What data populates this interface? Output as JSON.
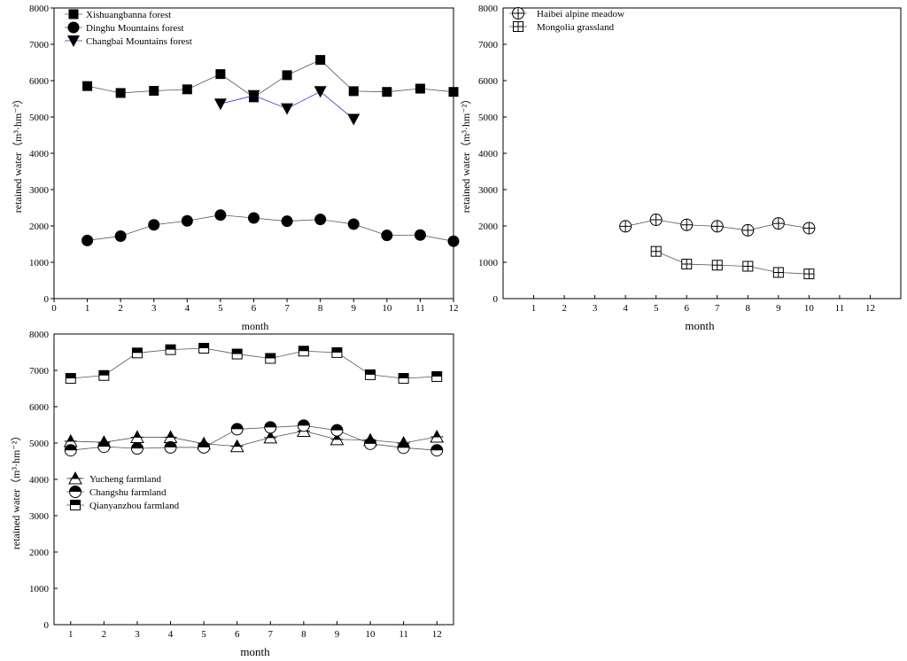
{
  "chart_data": [
    {
      "id": "forests",
      "type": "line",
      "xlabel": "month",
      "ylabel": "retained water（m³·hm⁻²）",
      "xlim": [
        0,
        12
      ],
      "ylim": [
        0,
        8000
      ],
      "xticks": [
        0,
        1,
        2,
        3,
        4,
        5,
        6,
        7,
        8,
        9,
        10,
        11,
        12
      ],
      "yticks": [
        0,
        1000,
        2000,
        3000,
        4000,
        5000,
        6000,
        7000,
        8000
      ],
      "legend_position": "top-left",
      "series": [
        {
          "name": "Xishuangbanna forest",
          "marker": "square-filled",
          "line_color": "#555555",
          "x": [
            1,
            2,
            3,
            4,
            5,
            6,
            7,
            8,
            9,
            10,
            11,
            12
          ],
          "values": [
            5850,
            5660,
            5720,
            5760,
            6180,
            5540,
            6150,
            6570,
            5710,
            5690,
            5780,
            5690
          ]
        },
        {
          "name": "Dinghu Mountains forest",
          "marker": "circle-filled",
          "line_color": "#555555",
          "x": [
            1,
            2,
            3,
            4,
            5,
            6,
            7,
            8,
            9,
            10,
            11,
            12
          ],
          "values": [
            1600,
            1720,
            2030,
            2140,
            2300,
            2220,
            2130,
            2180,
            2050,
            1740,
            1750,
            1580
          ]
        },
        {
          "name": "Changbai Mountains forest",
          "marker": "triangle-down-filled",
          "line_color": "#3333cc",
          "x": [
            5,
            6,
            7,
            8,
            9
          ],
          "values": [
            5360,
            5590,
            5230,
            5700,
            4940
          ]
        }
      ]
    },
    {
      "id": "grasslands",
      "type": "line",
      "xlabel": "month",
      "ylabel": "retained water（m³·hm⁻²）",
      "xlim": [
        0,
        13
      ],
      "ylim": [
        0,
        8000
      ],
      "xticks": [
        1,
        2,
        3,
        4,
        5,
        6,
        7,
        8,
        9,
        10,
        11,
        12
      ],
      "yticks": [
        0,
        1000,
        2000,
        3000,
        4000,
        5000,
        6000,
        7000,
        8000
      ],
      "legend_position": "top-left",
      "series": [
        {
          "name": "Haibei alpine meadow",
          "marker": "circle-plus",
          "line_color": "#555555",
          "x": [
            4,
            5,
            6,
            7,
            8,
            9,
            10
          ],
          "values": [
            1990,
            2170,
            2030,
            1990,
            1880,
            2070,
            1940
          ]
        },
        {
          "name": "Mongolia grassland",
          "marker": "square-plus",
          "line_color": "#555555",
          "x": [
            5,
            6,
            7,
            8,
            9,
            10
          ],
          "values": [
            1300,
            950,
            920,
            890,
            720,
            680
          ]
        }
      ]
    },
    {
      "id": "farmlands",
      "type": "line",
      "xlabel": "month",
      "ylabel": "retained water（m³·hm⁻²）",
      "xlim": [
        0.5,
        12.5
      ],
      "ylim": [
        0,
        8000
      ],
      "xticks": [
        1,
        2,
        3,
        4,
        5,
        6,
        7,
        8,
        9,
        10,
        11,
        12
      ],
      "yticks": [
        0,
        1000,
        2000,
        3000,
        4000,
        5000,
        6000,
        7000,
        8000
      ],
      "legend_position": "middle-left",
      "series": [
        {
          "name": "Yucheng farmland",
          "marker": "triangle-half",
          "line_color": "#555555",
          "x": [
            1,
            2,
            3,
            4,
            5,
            6,
            7,
            8,
            9,
            10,
            11,
            12
          ],
          "values": [
            5050,
            5020,
            5160,
            5160,
            4980,
            4910,
            5150,
            5330,
            5100,
            5080,
            5000,
            5170
          ]
        },
        {
          "name": "Changshu farmland",
          "marker": "circle-half",
          "line_color": "#555555",
          "x": [
            1,
            2,
            3,
            4,
            5,
            6,
            7,
            8,
            9,
            10,
            11,
            12
          ],
          "values": [
            4800,
            4900,
            4850,
            4880,
            4880,
            5380,
            5430,
            5480,
            5350,
            4980,
            4870,
            4800
          ]
        },
        {
          "name": "Qianyanzhou farmland",
          "marker": "square-half",
          "line_color": "#555555",
          "x": [
            1,
            2,
            3,
            4,
            5,
            6,
            7,
            8,
            9,
            10,
            11,
            12
          ],
          "values": [
            6780,
            6860,
            7480,
            7570,
            7610,
            7450,
            7330,
            7530,
            7490,
            6880,
            6780,
            6830
          ]
        }
      ]
    }
  ]
}
